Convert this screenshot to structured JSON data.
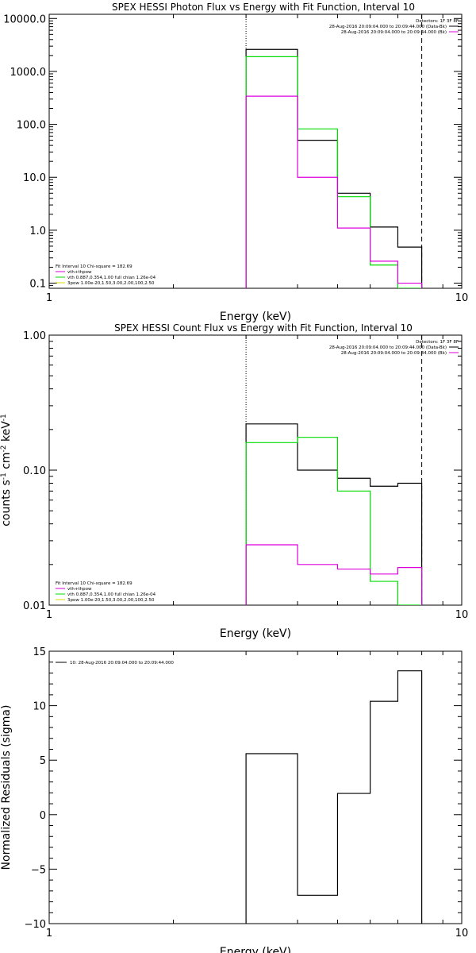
{
  "chart_data": [
    {
      "type": "line",
      "title": "SPEX HESSI Photon Flux vs Energy with Fit Function, Interval 10",
      "xlabel": "Energy (keV)",
      "ylabel": "",
      "xscale": "log",
      "yscale": "log",
      "xlim": [
        1,
        10
      ],
      "ylim": [
        0.08,
        12000
      ],
      "xticks": [
        {
          "v": 1,
          "label": "1"
        },
        {
          "v": 10,
          "label": "10"
        }
      ],
      "yticks": [
        {
          "v": 0.1,
          "label": "0.1"
        },
        {
          "v": 1,
          "label": "1.0"
        },
        {
          "v": 10,
          "label": "10.0"
        },
        {
          "v": 100,
          "label": "100.0"
        },
        {
          "v": 1000,
          "label": "1000.0"
        },
        {
          "v": 10000,
          "label": "10000.0"
        }
      ],
      "vlines": [
        {
          "x": 3.0,
          "style": "dotted"
        },
        {
          "x": 8.0,
          "style": "dashed"
        }
      ],
      "edges": [
        3.0,
        4.0,
        5.0,
        6.0,
        7.0,
        8.0
      ],
      "series": [
        {
          "color": "#000000",
          "values": [
            2600,
            50,
            5.0,
            1.15,
            0.48
          ]
        },
        {
          "color": "#00dd00",
          "values": [
            1900,
            82,
            4.3,
            0.22,
            0.07
          ]
        },
        {
          "color": "#dd00dd",
          "values": [
            340,
            10,
            1.1,
            0.26,
            0.1
          ]
        }
      ],
      "legend_tr": {
        "header": "Detectors: 1F 3F 8F",
        "lines": [
          {
            "text": "28-Aug-2016 20:09:04.000 to 20:09:44.000 (Data-Bk)",
            "color": "#000000"
          },
          {
            "text": "28-Aug-2016 20:09:04.000 to 20:09:44.000 (Bk)",
            "color": "#dd00dd"
          }
        ]
      },
      "legend_bl": {
        "header": "Fit Interval 10   Chi-square = 182.69",
        "lines": [
          {
            "text": "vth+thpow",
            "color": "#dd00dd"
          },
          {
            "text": "vth 0.887,0.354,1.00  full chian 1.26e-04",
            "color": "#00dd00"
          },
          {
            "text": "3pow 1.00e-20,1.50,3.00,2.00,100,2.50",
            "color": "#dddd00"
          }
        ]
      }
    },
    {
      "type": "line",
      "title": "SPEX HESSI Count Flux vs Energy with Fit Function, Interval 10",
      "xlabel": "Energy (keV)",
      "ylabel": "counts s^-1 cm^-2 keV^-1",
      "xscale": "log",
      "yscale": "log",
      "xlim": [
        1,
        10
      ],
      "ylim": [
        0.01,
        1.0
      ],
      "xticks": [
        {
          "v": 1,
          "label": "1"
        },
        {
          "v": 10,
          "label": "10"
        }
      ],
      "yticks": [
        {
          "v": 0.01,
          "label": "0.01"
        },
        {
          "v": 0.1,
          "label": "0.10"
        },
        {
          "v": 1,
          "label": "1.00"
        }
      ],
      "vlines": [
        {
          "x": 3.0,
          "style": "dotted"
        },
        {
          "x": 8.0,
          "style": "dashed"
        }
      ],
      "edges": [
        3.0,
        4.0,
        5.0,
        6.0,
        7.0,
        8.0
      ],
      "series": [
        {
          "color": "#000000",
          "values": [
            0.22,
            0.1,
            0.087,
            0.076,
            0.08
          ]
        },
        {
          "color": "#00dd00",
          "values": [
            0.16,
            0.175,
            0.07,
            0.015,
            0.008
          ]
        },
        {
          "color": "#dd00dd",
          "values": [
            0.028,
            0.02,
            0.0185,
            0.017,
            0.019
          ]
        }
      ],
      "legend_tr": {
        "header": "Detectors: 1F 3F 8F",
        "lines": [
          {
            "text": "28-Aug-2016 20:09:04.000 to 20:09:44.000 (Data-Bk)",
            "color": "#000000"
          },
          {
            "text": "28-Aug-2016 20:09:04.000 to 20:09:44.000 (Bk)",
            "color": "#dd00dd"
          }
        ]
      },
      "legend_bl": {
        "header": "Fit Interval 10   Chi-square = 182.69",
        "lines": [
          {
            "text": "vth+thpow",
            "color": "#dd00dd"
          },
          {
            "text": "vth 0.887,0.354,1.00  full chian 1.26e-04",
            "color": "#00dd00"
          },
          {
            "text": "3pow 1.00e-20,1.50,3.00,2.00,100,2.50",
            "color": "#dddd00"
          }
        ]
      }
    },
    {
      "type": "line",
      "title": "",
      "xlabel": "Energy (keV)",
      "ylabel": "Normalized Residuals (sigma)",
      "xscale": "log",
      "yscale": "linear",
      "xlim": [
        1,
        10
      ],
      "ylim": [
        -10,
        15
      ],
      "xticks": [
        {
          "v": 1,
          "label": "1"
        },
        {
          "v": 10,
          "label": "10"
        }
      ],
      "yticks": [
        {
          "v": -10,
          "label": "−10"
        },
        {
          "v": -5,
          "label": "−5"
        },
        {
          "v": 0,
          "label": "0"
        },
        {
          "v": 5,
          "label": "5"
        },
        {
          "v": 10,
          "label": "10"
        },
        {
          "v": 15,
          "label": "15"
        }
      ],
      "vlines": [],
      "edges": [
        3.0,
        4.0,
        5.0,
        6.0,
        7.0,
        8.0
      ],
      "series": [
        {
          "color": "#000000",
          "values": [
            5.6,
            -7.4,
            1.95,
            10.4,
            13.2
          ]
        }
      ],
      "legend_tl": {
        "lines": [
          {
            "text": "10: 28-Aug-2016 20:09:04.000 to 20:09:44.000",
            "color": "#000000"
          }
        ]
      }
    }
  ]
}
